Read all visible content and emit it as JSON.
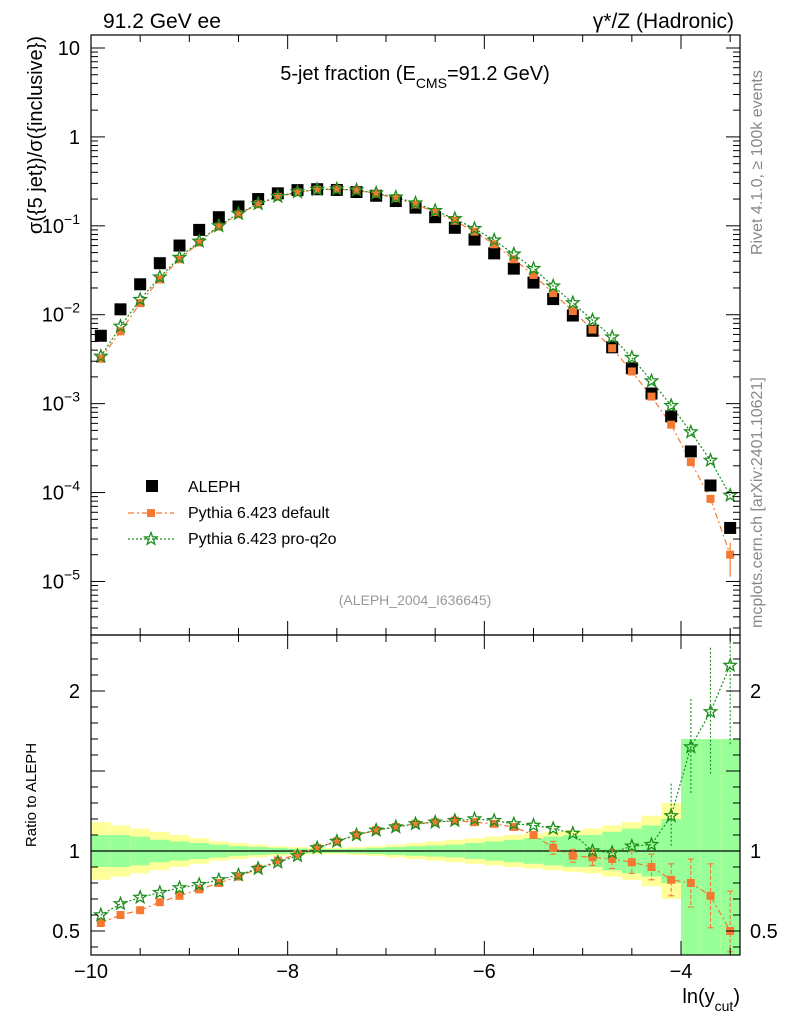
{
  "header": {
    "left": "91.2 GeV ee",
    "right": "γ*/Z (Hadronic)",
    "side_top": "Rivet 4.1.0, ≥ 100k events",
    "side_bottom": "mcplots.cern.ch [arXiv:2401.10621]"
  },
  "chart_data": [
    {
      "type": "scatter",
      "title_parts": {
        "pre": "5-jet fraction (E",
        "sub": "CMS",
        "post": "=91.2 GeV)"
      },
      "ylabel": "σ({5 jet})/σ({inclusive})",
      "yscale": "log",
      "ylim": [
        2.5e-06,
        14
      ],
      "xlim": [
        -10.0,
        -3.4
      ],
      "y_ticks": [
        {
          "v": 1e-05,
          "base": "10",
          "exp": "−5"
        },
        {
          "v": 0.0001,
          "base": "10",
          "exp": "−4"
        },
        {
          "v": 0.001,
          "base": "10",
          "exp": "−3"
        },
        {
          "v": 0.01,
          "base": "10",
          "exp": "−2"
        },
        {
          "v": 0.1,
          "base": "10",
          "exp": "−1"
        },
        {
          "v": 1,
          "base": "1",
          "exp": ""
        },
        {
          "v": 10,
          "base": "10",
          "exp": ""
        }
      ],
      "watermark": "(ALEPH_2004_I636645)",
      "x": [
        -9.9,
        -9.7,
        -9.5,
        -9.3,
        -9.1,
        -8.9,
        -8.7,
        -8.5,
        -8.3,
        -8.1,
        -7.9,
        -7.7,
        -7.5,
        -7.3,
        -7.1,
        -6.9,
        -6.7,
        -6.5,
        -6.3,
        -6.1,
        -5.9,
        -5.7,
        -5.5,
        -5.3,
        -5.1,
        -4.9,
        -4.7,
        -4.5,
        -4.3,
        -4.1,
        -3.9,
        -3.7,
        -3.5
      ],
      "series": [
        {
          "name": "ALEPH",
          "color": "#000000",
          "marker": "square",
          "values": [
            0.0058,
            0.0115,
            0.022,
            0.038,
            0.06,
            0.09,
            0.125,
            0.165,
            0.2,
            0.232,
            0.252,
            0.258,
            0.253,
            0.24,
            0.218,
            0.19,
            0.16,
            0.125,
            0.095,
            0.07,
            0.049,
            0.033,
            0.023,
            0.015,
            0.0098,
            0.0066,
            0.0043,
            0.0025,
            0.0013,
            0.00072,
            0.00029,
            0.00012,
            4e-05
          ]
        },
        {
          "name": "Pythia 6.423 default",
          "color": "#f47a33",
          "marker": "square-small",
          "values": [
            0.0032,
            0.0065,
            0.0135,
            0.025,
            0.042,
            0.065,
            0.098,
            0.135,
            0.175,
            0.212,
            0.238,
            0.255,
            0.258,
            0.25,
            0.23,
            0.205,
            0.174,
            0.143,
            0.114,
            0.086,
            0.062,
            0.042,
            0.028,
            0.0175,
            0.011,
            0.0068,
            0.0042,
            0.0023,
            0.0012,
            0.00058,
            0.00022,
            8.5e-05,
            2e-05
          ]
        },
        {
          "name": "Pythia 6.423 pro-q2o",
          "color": "#1c8c1c",
          "marker": "star",
          "values": [
            0.0034,
            0.0074,
            0.0148,
            0.0265,
            0.044,
            0.067,
            0.1,
            0.137,
            0.177,
            0.214,
            0.24,
            0.256,
            0.259,
            0.252,
            0.233,
            0.21,
            0.18,
            0.148,
            0.12,
            0.093,
            0.069,
            0.048,
            0.033,
            0.021,
            0.0136,
            0.0087,
            0.0056,
            0.0033,
            0.0018,
            0.00095,
            0.00048,
            0.00023,
            9.3e-05
          ]
        }
      ]
    },
    {
      "type": "scatter",
      "title": "",
      "ylabel": "Ratio to ALEPH",
      "xlabel_parts": {
        "pre": "ln(y",
        "sub": "cut",
        "post": ")"
      },
      "ylim": [
        0.35,
        2.35
      ],
      "xlim": [
        -10.0,
        -3.4
      ],
      "x_ticks": [
        {
          "v": -10,
          "label": "−10"
        },
        {
          "v": -8,
          "label": "−8"
        },
        {
          "v": -6,
          "label": "−6"
        },
        {
          "v": -4,
          "label": "−4"
        }
      ],
      "y_ticks": [
        {
          "v": 0.5,
          "label": "0.5"
        },
        {
          "v": 1,
          "label": "1"
        },
        {
          "v": 2,
          "label": "2"
        }
      ],
      "bands": {
        "inner_color": "#99ff99",
        "outer_color": "#ffff99",
        "inner_halfwidth": [
          0.1,
          0.1,
          0.09,
          0.07,
          0.06,
          0.05,
          0.04,
          0.03,
          0.025,
          0.02,
          0.015,
          0.012,
          0.012,
          0.015,
          0.02,
          0.025,
          0.03,
          0.035,
          0.04,
          0.05,
          0.06,
          0.07,
          0.08,
          0.09,
          0.1,
          0.1,
          0.12,
          0.14,
          0.16,
          0.2,
          0.7,
          0.7,
          0.7
        ],
        "outer_halfwidth": [
          0.18,
          0.16,
          0.14,
          0.12,
          0.1,
          0.08,
          0.06,
          0.05,
          0.04,
          0.03,
          0.025,
          0.02,
          0.02,
          0.025,
          0.03,
          0.04,
          0.05,
          0.06,
          0.07,
          0.08,
          0.09,
          0.1,
          0.11,
          0.12,
          0.13,
          0.14,
          0.16,
          0.18,
          0.22,
          0.3,
          0.7,
          0.7,
          0.7
        ]
      },
      "series": [
        {
          "name": "Pythia 6.423 default",
          "color": "#f47a33",
          "values": [
            0.55,
            0.6,
            0.63,
            0.68,
            0.72,
            0.76,
            0.8,
            0.84,
            0.89,
            0.94,
            0.98,
            1.02,
            1.06,
            1.1,
            1.13,
            1.15,
            1.17,
            1.18,
            1.19,
            1.18,
            1.17,
            1.15,
            1.1,
            1.02,
            0.97,
            0.96,
            0.95,
            0.93,
            0.9,
            0.82,
            0.8,
            0.72,
            0.5
          ],
          "err": [
            0.03,
            0.03,
            0.03,
            0.02,
            0.02,
            0.02,
            0.02,
            0.02,
            0.02,
            0.02,
            0.02,
            0.02,
            0.02,
            0.02,
            0.02,
            0.02,
            0.02,
            0.02,
            0.02,
            0.02,
            0.02,
            0.03,
            0.03,
            0.04,
            0.04,
            0.05,
            0.06,
            0.07,
            0.08,
            0.1,
            0.15,
            0.2,
            0.25
          ]
        },
        {
          "name": "Pythia 6.423 pro-q2o",
          "color": "#1c8c1c",
          "values": [
            0.6,
            0.67,
            0.71,
            0.74,
            0.77,
            0.79,
            0.82,
            0.85,
            0.89,
            0.93,
            0.97,
            1.02,
            1.06,
            1.1,
            1.13,
            1.15,
            1.17,
            1.18,
            1.19,
            1.2,
            1.19,
            1.17,
            1.16,
            1.14,
            1.11,
            1.0,
            0.99,
            1.03,
            1.04,
            1.22,
            1.65,
            1.87,
            2.16
          ]
        },
        {
          "name": "ALEPH",
          "color": "#000000",
          "values": [
            1,
            1
          ]
        }
      ]
    }
  ],
  "legend": [
    {
      "label": "ALEPH"
    },
    {
      "label": "Pythia 6.423 default"
    },
    {
      "label": "Pythia 6.423 pro-q2o"
    }
  ]
}
